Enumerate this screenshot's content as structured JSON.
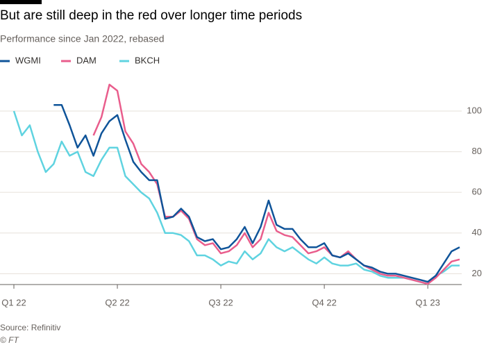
{
  "chart_data": {
    "type": "line",
    "title": "But are still deep in the red over longer time periods",
    "subtitle": "Performance since Jan 2022, rebased",
    "source": "Source: Refinitiv",
    "credit": "© FT",
    "x": [
      0,
      1,
      2,
      3,
      4,
      5,
      6,
      7,
      8,
      9,
      10,
      11,
      12,
      13,
      14,
      15,
      16,
      17,
      18,
      19,
      20,
      21,
      22,
      23,
      24,
      25,
      26,
      27,
      28,
      29,
      30,
      31,
      32,
      33,
      34,
      35,
      36,
      37,
      38,
      39,
      40,
      41,
      42,
      43,
      44,
      45,
      46,
      47,
      48,
      49,
      50,
      51,
      52,
      53,
      54,
      55,
      56
    ],
    "xlim": [
      0,
      56
    ],
    "xticks": [
      {
        "value": 0,
        "label": "Q1 22"
      },
      {
        "value": 13,
        "label": "Q2 22"
      },
      {
        "value": 26,
        "label": "Q3 22"
      },
      {
        "value": 39,
        "label": "Q4 22"
      },
      {
        "value": 52,
        "label": "Q1 23"
      }
    ],
    "ylim": [
      15,
      120
    ],
    "yticks": [
      20,
      40,
      60,
      80,
      100
    ],
    "grid": true,
    "series": [
      {
        "name": "WGMI",
        "color": "#0f5499",
        "values": [
          null,
          null,
          null,
          null,
          null,
          103,
          103,
          93,
          82,
          88,
          78,
          89,
          95,
          98,
          86,
          75,
          70,
          66,
          66,
          47,
          48,
          52,
          48,
          38,
          36,
          37,
          32,
          33,
          37,
          43,
          35,
          43,
          56,
          44,
          42,
          42,
          37,
          33,
          33,
          35,
          29,
          28,
          30,
          27,
          24,
          23,
          21,
          20,
          20,
          19,
          18,
          17,
          16,
          19,
          25,
          31,
          33
        ]
      },
      {
        "name": "DAM",
        "color": "#e95d8c",
        "values": [
          null,
          null,
          null,
          null,
          null,
          null,
          null,
          null,
          null,
          null,
          88,
          97,
          113,
          110,
          90,
          84,
          74,
          70,
          64,
          48,
          48,
          51,
          47,
          37,
          34,
          35,
          30,
          31,
          34,
          40,
          33,
          37,
          50,
          41,
          39,
          38,
          34,
          30,
          31,
          33,
          29,
          28,
          31,
          27,
          24,
          22,
          20,
          19,
          19,
          18,
          17,
          16,
          15,
          18,
          22,
          26,
          27
        ]
      },
      {
        "name": "BKCH",
        "color": "#5fd3e0",
        "values": [
          100,
          88,
          93,
          80,
          70,
          74,
          85,
          78,
          80,
          70,
          68,
          76,
          82,
          82,
          68,
          64,
          60,
          57,
          50,
          40,
          40,
          39,
          36,
          29,
          29,
          27,
          24,
          26,
          25,
          31,
          27,
          30,
          37,
          33,
          31,
          33,
          30,
          27,
          25,
          28,
          25,
          24,
          24,
          25,
          22,
          21,
          19,
          18,
          18,
          18,
          17,
          16,
          15,
          19,
          21,
          24,
          24
        ]
      }
    ]
  }
}
